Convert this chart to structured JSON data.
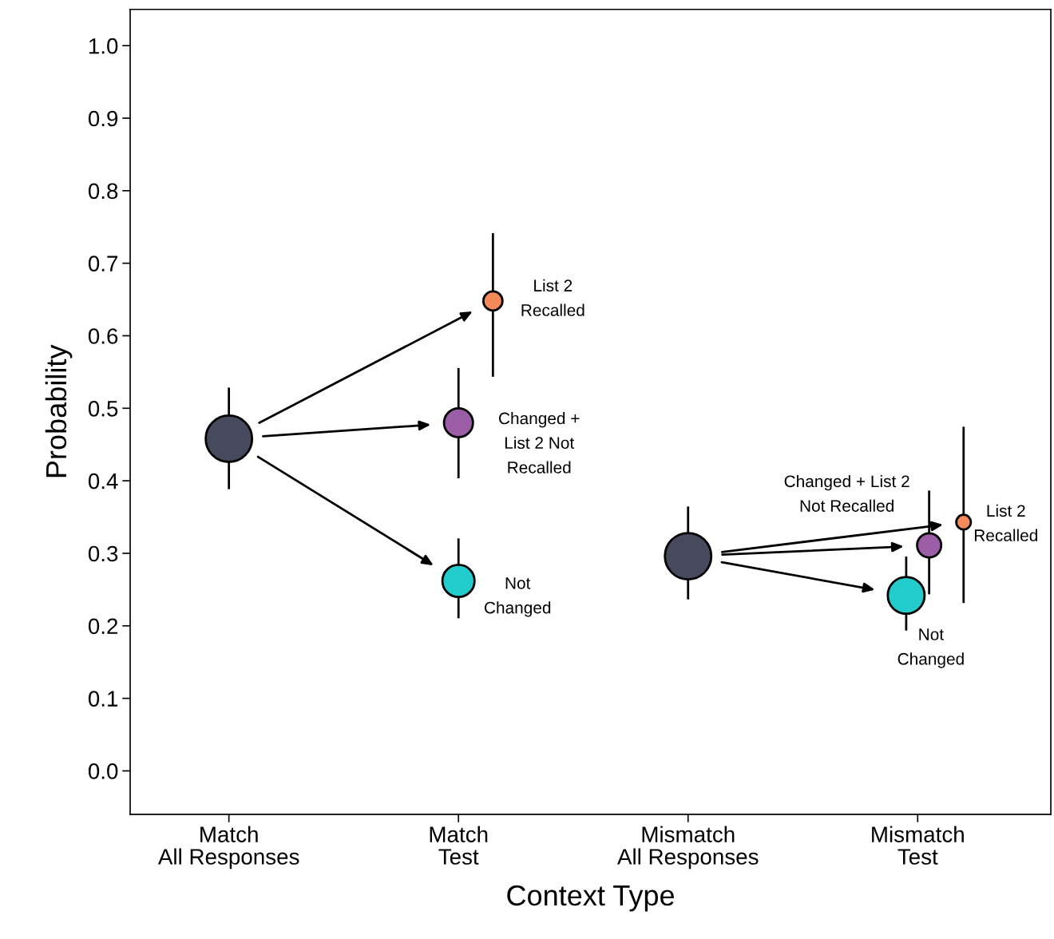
{
  "chart_data": {
    "type": "bubble",
    "xlabel": "Context Type",
    "ylabel": "Probability",
    "categories": [
      "Match\nAll Responses",
      "Match\nTest",
      "Mismatch\nAll Responses",
      "Mismatch\nTest"
    ],
    "ylim": [
      -0.06,
      1.05
    ],
    "yticks": [
      {
        "value": 0,
        "label": "0.0"
      },
      {
        "value": 0.1,
        "label": "0.1"
      },
      {
        "value": 0.2,
        "label": "0.2"
      },
      {
        "value": 0.3,
        "label": "0.3"
      },
      {
        "value": 0.4,
        "label": "0.4"
      },
      {
        "value": 0.5,
        "label": "0.5"
      },
      {
        "value": 0.6,
        "label": "0.6"
      },
      {
        "value": 0.7,
        "label": "0.7"
      },
      {
        "value": 0.8,
        "label": "0.8"
      },
      {
        "value": 0.9,
        "label": "0.9"
      },
      {
        "value": 1.0,
        "label": "1.0"
      }
    ],
    "grid": false,
    "marker": "circle",
    "series": [
      {
        "color": "#464a5c",
        "values": [
          0.458,
          null,
          0.296,
          null
        ],
        "sizes": [
          1,
          null,
          1,
          null
        ],
        "errors": [
          [
            0.39,
            0.527
          ],
          null,
          [
            0.238,
            0.363
          ],
          null
        ]
      },
      {
        "color": "#f4895a",
        "values": [
          null,
          0.648,
          null,
          0.343
        ],
        "sizes": [
          null,
          0.17,
          null,
          0.1
        ],
        "errors": [
          null,
          [
            0.545,
            0.74
          ],
          null,
          [
            0.233,
            0.473
          ]
        ]
      },
      {
        "color": "#9b5ea6",
        "values": [
          null,
          0.48,
          null,
          0.311
        ],
        "sizes": [
          null,
          0.39,
          null,
          0.27
        ],
        "errors": [
          null,
          [
            0.405,
            0.554
          ],
          null,
          [
            0.245,
            0.385
          ]
        ]
      },
      {
        "color": "#22cccc",
        "values": [
          null,
          0.262,
          null,
          0.242
        ],
        "sizes": [
          null,
          0.48,
          null,
          0.63
        ],
        "errors": [
          null,
          [
            0.212,
            0.319
          ],
          null,
          [
            0.195,
            0.294
          ]
        ]
      }
    ],
    "annotations": [
      "List 2\nRecalled",
      "Changed +\nList 2 Not\nRecalled",
      "Not\nChanged",
      "Changed + List 2\nNot Recalled",
      "List 2\nRecalled",
      "Not\nChanged"
    ]
  }
}
